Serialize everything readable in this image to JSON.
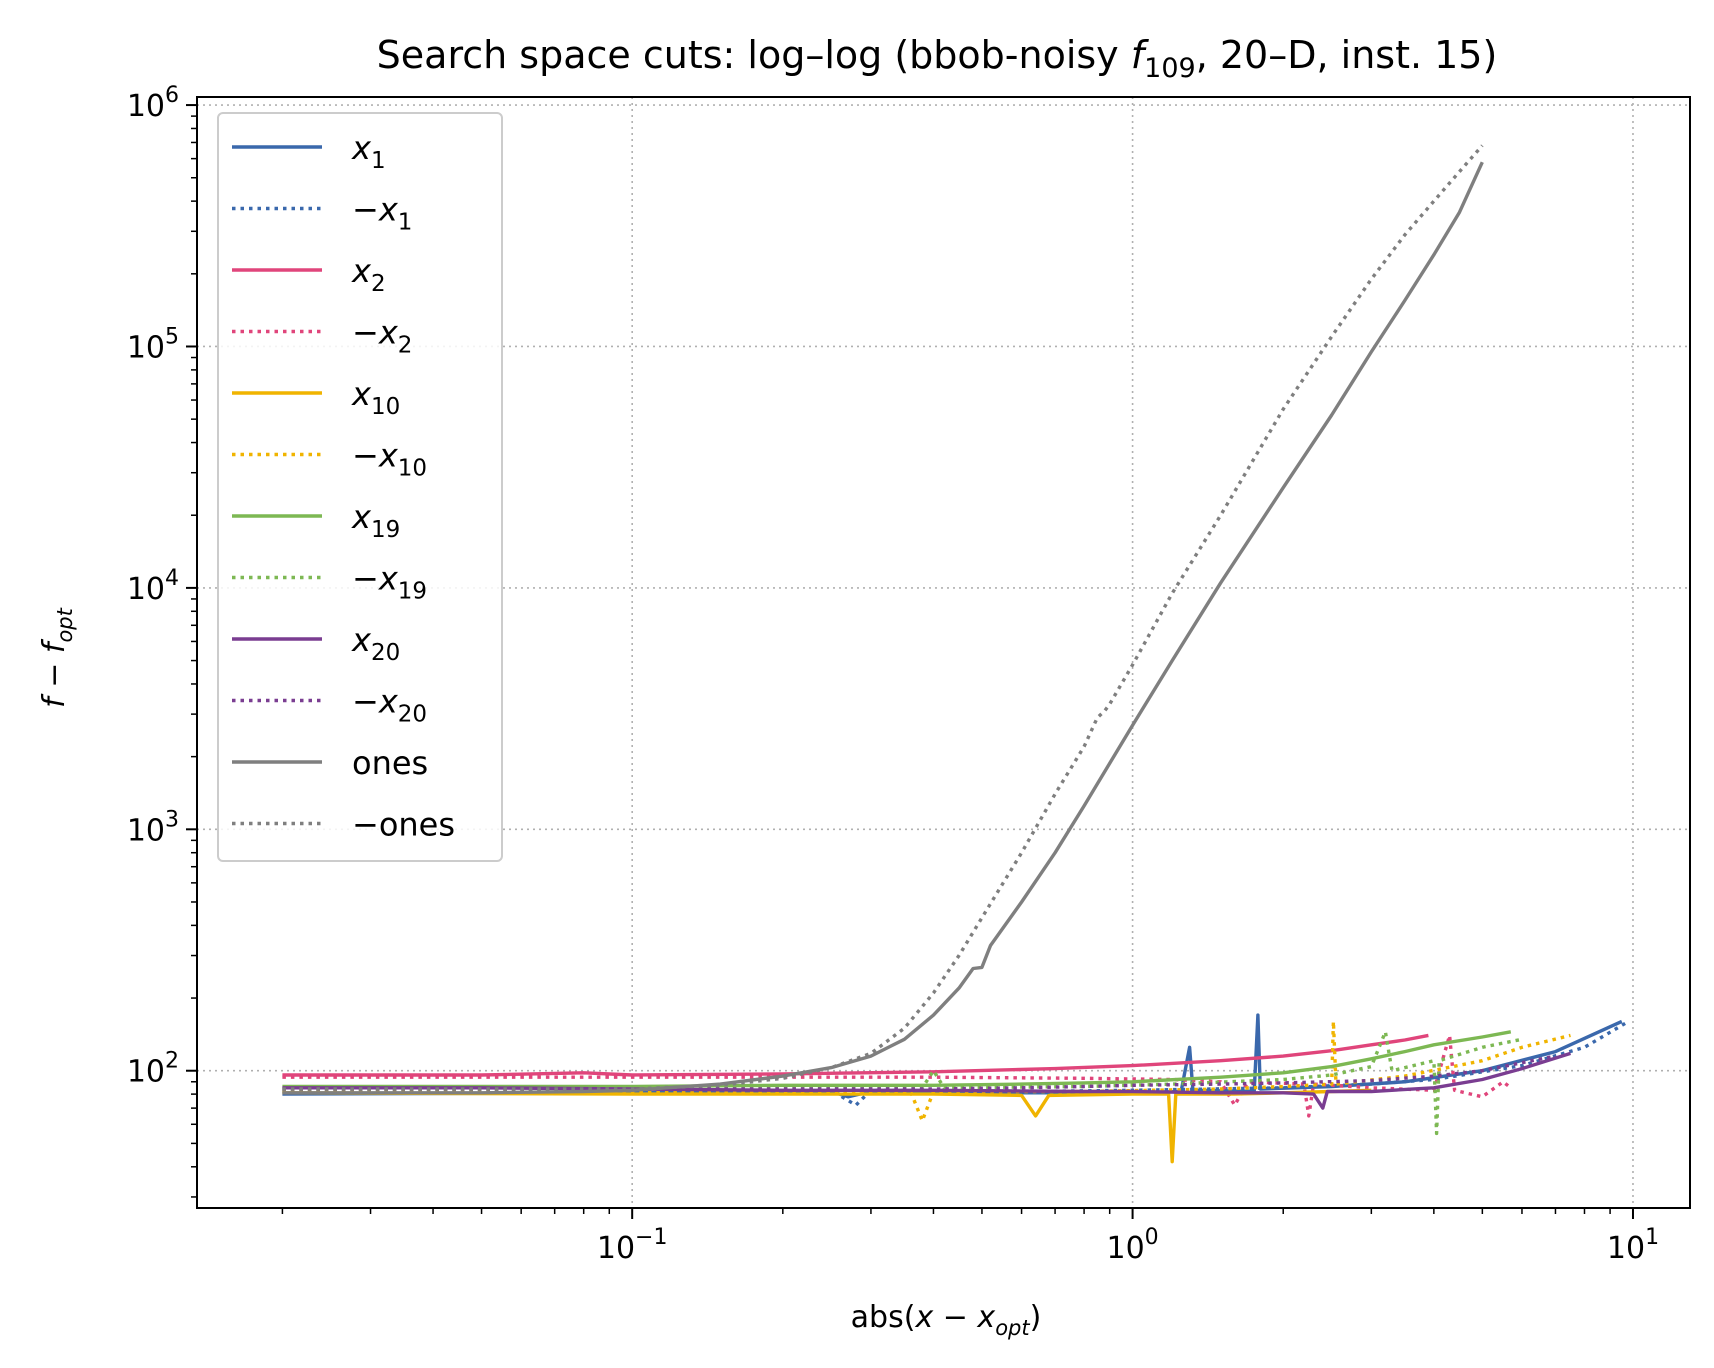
{
  "chart_data": {
    "type": "line",
    "title": "Search space cuts: log–log (bbob-noisy f109, 20–D, inst. 15)",
    "xlabel": "abs(x − x_opt)",
    "ylabel": "f − f_opt",
    "xscale": "log",
    "yscale": "log",
    "xlim": [
      0.0135,
      13.0
    ],
    "ylim": [
      27,
      1080000
    ],
    "grid": true,
    "legend_position": "top-left",
    "x_tick_labels": [
      "10^-1",
      "10^0",
      "10^1"
    ],
    "x_tick_values": [
      0.1,
      1,
      10
    ],
    "y_tick_labels": [
      "10^2",
      "10^3",
      "10^4",
      "10^5",
      "10^6"
    ],
    "y_tick_values": [
      100,
      1000,
      10000,
      100000,
      1000000
    ],
    "series": [
      {
        "name": "x1",
        "style": "solid",
        "color": "#3a68ac",
        "points": [
          [
            0.02,
            80
          ],
          [
            0.1,
            81
          ],
          [
            0.2,
            82
          ],
          [
            0.25,
            82
          ],
          [
            0.27,
            78
          ],
          [
            0.3,
            82
          ],
          [
            0.5,
            81
          ],
          [
            1.0,
            81
          ],
          [
            1.25,
            82
          ],
          [
            1.3,
            125
          ],
          [
            1.32,
            83
          ],
          [
            1.75,
            82
          ],
          [
            1.78,
            170
          ],
          [
            1.8,
            84
          ],
          [
            2.5,
            86
          ],
          [
            3.5,
            90
          ],
          [
            5.0,
            100
          ],
          [
            7.0,
            120
          ],
          [
            9.5,
            160
          ]
        ]
      },
      {
        "name": "−x1",
        "style": "dotted",
        "color": "#3a68ac",
        "points": [
          [
            0.02,
            82
          ],
          [
            0.1,
            82
          ],
          [
            0.25,
            83
          ],
          [
            0.28,
            72
          ],
          [
            0.3,
            83
          ],
          [
            0.6,
            82
          ],
          [
            1.0,
            83
          ],
          [
            2.0,
            85
          ],
          [
            3.0,
            88
          ],
          [
            4.0,
            92
          ],
          [
            6.0,
            105
          ],
          [
            8.0,
            125
          ],
          [
            9.8,
            160
          ]
        ]
      },
      {
        "name": "x2",
        "style": "solid",
        "color": "#e0457b",
        "points": [
          [
            0.02,
            96
          ],
          [
            0.05,
            96
          ],
          [
            0.08,
            98
          ],
          [
            0.1,
            96
          ],
          [
            0.2,
            97
          ],
          [
            0.4,
            99
          ],
          [
            0.7,
            102
          ],
          [
            1.0,
            105
          ],
          [
            1.5,
            110
          ],
          [
            2.0,
            115
          ],
          [
            2.5,
            121
          ],
          [
            3.0,
            128
          ],
          [
            3.5,
            134
          ],
          [
            3.9,
            140
          ]
        ]
      },
      {
        "name": "−x2",
        "style": "dotted",
        "color": "#e0457b",
        "points": [
          [
            0.02,
            94
          ],
          [
            0.1,
            94
          ],
          [
            0.2,
            94
          ],
          [
            0.4,
            94
          ],
          [
            0.8,
            93
          ],
          [
            1.2,
            92
          ],
          [
            1.5,
            90
          ],
          [
            1.6,
            72
          ],
          [
            1.7,
            90
          ],
          [
            2.2,
            88
          ],
          [
            2.25,
            65
          ],
          [
            2.3,
            88
          ],
          [
            3.0,
            85
          ],
          [
            4.0,
            83
          ],
          [
            4.3,
            140
          ],
          [
            4.4,
            83
          ],
          [
            5.0,
            78
          ],
          [
            5.5,
            90
          ],
          [
            5.7,
            85
          ]
        ]
      },
      {
        "name": "x10",
        "style": "solid",
        "color": "#f0b400",
        "points": [
          [
            0.02,
            81
          ],
          [
            0.1,
            80
          ],
          [
            0.2,
            80
          ],
          [
            0.4,
            80
          ],
          [
            0.6,
            79
          ],
          [
            0.64,
            65
          ],
          [
            0.68,
            79
          ],
          [
            1.0,
            80
          ],
          [
            1.18,
            80
          ],
          [
            1.2,
            42
          ],
          [
            1.22,
            80
          ],
          [
            1.6,
            80
          ],
          [
            2.0,
            81
          ],
          [
            2.5,
            82
          ],
          [
            3.0,
            83
          ]
        ]
      },
      {
        "name": "−x10",
        "style": "dotted",
        "color": "#f0b400",
        "points": [
          [
            0.02,
            82
          ],
          [
            0.1,
            82
          ],
          [
            0.3,
            82
          ],
          [
            0.36,
            82
          ],
          [
            0.38,
            62
          ],
          [
            0.4,
            82
          ],
          [
            0.8,
            82
          ],
          [
            1.5,
            84
          ],
          [
            2.0,
            86
          ],
          [
            2.5,
            88
          ],
          [
            2.52,
            160
          ],
          [
            2.55,
            88
          ],
          [
            3.5,
            95
          ],
          [
            5.0,
            110
          ],
          [
            6.0,
            125
          ],
          [
            7.5,
            140
          ]
        ]
      },
      {
        "name": "x19",
        "style": "solid",
        "color": "#7db853",
        "points": [
          [
            0.02,
            86
          ],
          [
            0.1,
            86
          ],
          [
            0.2,
            87
          ],
          [
            0.4,
            87
          ],
          [
            0.6,
            88
          ],
          [
            0.8,
            89
          ],
          [
            1.0,
            90
          ],
          [
            1.5,
            94
          ],
          [
            2.0,
            98
          ],
          [
            2.5,
            104
          ],
          [
            3.0,
            112
          ],
          [
            3.5,
            120
          ],
          [
            4.0,
            128
          ],
          [
            5.0,
            138
          ],
          [
            5.7,
            145
          ]
        ]
      },
      {
        "name": "−x19",
        "style": "dotted",
        "color": "#7db853",
        "points": [
          [
            0.02,
            84
          ],
          [
            0.1,
            84
          ],
          [
            0.2,
            85
          ],
          [
            0.38,
            85
          ],
          [
            0.4,
            100
          ],
          [
            0.42,
            85
          ],
          [
            0.8,
            86
          ],
          [
            1.2,
            88
          ],
          [
            2.0,
            92
          ],
          [
            2.5,
            96
          ],
          [
            3.0,
            104
          ],
          [
            3.2,
            145
          ],
          [
            3.3,
            100
          ],
          [
            4.0,
            110
          ],
          [
            4.05,
            55
          ],
          [
            4.1,
            110
          ],
          [
            5.0,
            125
          ],
          [
            6.0,
            135
          ]
        ]
      },
      {
        "name": "x20",
        "style": "solid",
        "color": "#7a3d91",
        "points": [
          [
            0.02,
            85
          ],
          [
            0.05,
            85
          ],
          [
            0.1,
            84
          ],
          [
            0.2,
            83
          ],
          [
            0.4,
            83
          ],
          [
            0.8,
            82
          ],
          [
            1.0,
            82
          ],
          [
            1.5,
            81
          ],
          [
            2.0,
            81
          ],
          [
            2.3,
            80
          ],
          [
            2.4,
            70
          ],
          [
            2.45,
            82
          ],
          [
            3.0,
            82
          ],
          [
            4.0,
            85
          ],
          [
            5.0,
            92
          ],
          [
            6.0,
            102
          ],
          [
            7.5,
            118
          ]
        ]
      },
      {
        "name": "−x20",
        "style": "dotted",
        "color": "#7a3d91",
        "points": [
          [
            0.02,
            84
          ],
          [
            0.1,
            84
          ],
          [
            0.2,
            84
          ],
          [
            0.4,
            84
          ],
          [
            0.6,
            85
          ],
          [
            0.8,
            86
          ],
          [
            1.0,
            87
          ],
          [
            1.5,
            88
          ],
          [
            2.0,
            89
          ],
          [
            3.0,
            91
          ],
          [
            4.0,
            95
          ],
          [
            5.0,
            100
          ],
          [
            6.0,
            108
          ],
          [
            7.0,
            115
          ]
        ]
      },
      {
        "name": "ones",
        "style": "solid",
        "color": "#7f7f7f",
        "points": [
          [
            0.02,
            81
          ],
          [
            0.05,
            81
          ],
          [
            0.08,
            82
          ],
          [
            0.1,
            83
          ],
          [
            0.15,
            88
          ],
          [
            0.2,
            95
          ],
          [
            0.25,
            103
          ],
          [
            0.3,
            115
          ],
          [
            0.35,
            135
          ],
          [
            0.4,
            170
          ],
          [
            0.45,
            220
          ],
          [
            0.48,
            265
          ],
          [
            0.5,
            268
          ],
          [
            0.52,
            330
          ],
          [
            0.6,
            500
          ],
          [
            0.7,
            800
          ],
          [
            0.8,
            1250
          ],
          [
            1.0,
            2700
          ],
          [
            1.2,
            5000
          ],
          [
            1.5,
            10500
          ],
          [
            2.0,
            26000
          ],
          [
            2.5,
            52000
          ],
          [
            3.0,
            95000
          ],
          [
            3.5,
            155000
          ],
          [
            4.0,
            240000
          ],
          [
            4.5,
            360000
          ],
          [
            5.0,
            580000
          ]
        ]
      },
      {
        "name": "−ones",
        "style": "dotted",
        "color": "#7f7f7f",
        "points": [
          [
            0.02,
            84
          ],
          [
            0.05,
            84
          ],
          [
            0.1,
            84
          ],
          [
            0.15,
            87
          ],
          [
            0.2,
            93
          ],
          [
            0.25,
            103
          ],
          [
            0.3,
            118
          ],
          [
            0.35,
            150
          ],
          [
            0.4,
            210
          ],
          [
            0.45,
            300
          ],
          [
            0.5,
            430
          ],
          [
            0.6,
            800
          ],
          [
            0.7,
            1400
          ],
          [
            0.8,
            2200
          ],
          [
            0.85,
            2900
          ],
          [
            0.88,
            3100
          ],
          [
            0.9,
            3300
          ],
          [
            1.0,
            4800
          ],
          [
            1.2,
            9500
          ],
          [
            1.5,
            20000
          ],
          [
            2.0,
            55000
          ],
          [
            2.5,
            110000
          ],
          [
            3.0,
            190000
          ],
          [
            3.5,
            290000
          ],
          [
            4.0,
            400000
          ],
          [
            4.5,
            530000
          ],
          [
            5.0,
            680000
          ]
        ]
      }
    ]
  },
  "legend": {
    "items": [
      {
        "var": "x",
        "sub": "1",
        "neg": false
      },
      {
        "var": "x",
        "sub": "1",
        "neg": true
      },
      {
        "var": "x",
        "sub": "2",
        "neg": false
      },
      {
        "var": "x",
        "sub": "2",
        "neg": true
      },
      {
        "var": "x",
        "sub": "10",
        "neg": false
      },
      {
        "var": "x",
        "sub": "10",
        "neg": true
      },
      {
        "var": "x",
        "sub": "19",
        "neg": false
      },
      {
        "var": "x",
        "sub": "19",
        "neg": true
      },
      {
        "var": "x",
        "sub": "20",
        "neg": false
      },
      {
        "var": "x",
        "sub": "20",
        "neg": true
      },
      {
        "var": "ones",
        "sub": "",
        "neg": false
      },
      {
        "var": "ones",
        "sub": "",
        "neg": true
      }
    ]
  },
  "title_parts": {
    "pre": "Search space cuts: log–log (bbob-noisy ",
    "f": "f",
    "sub": "109",
    "post": ", 20–D, inst. 15)"
  },
  "xlabel_parts": {
    "pre": "abs(",
    "x": "x",
    "minus": " − ",
    "x2": "x",
    "sub": "opt",
    "post": ")"
  },
  "ylabel_parts": {
    "f": "f",
    "minus": " − ",
    "f2": "f",
    "sub": "opt"
  }
}
